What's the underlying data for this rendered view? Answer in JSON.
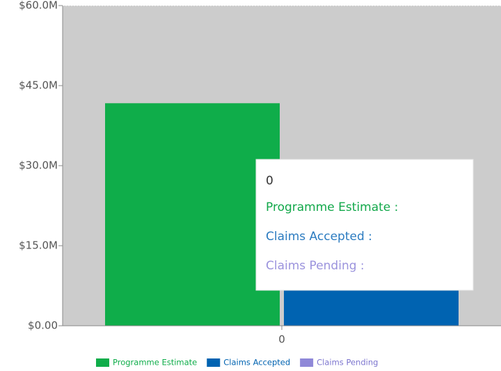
{
  "chart_data": {
    "type": "bar",
    "categories": [
      "0"
    ],
    "series": [
      {
        "name": "Programme Estimate",
        "color": "#0fad4a",
        "values": [
          41700000
        ]
      },
      {
        "name": "Claims Accepted",
        "color": "#0063b1",
        "values": [
          20000000
        ]
      },
      {
        "name": "Claims Pending",
        "color": "#8f88d8",
        "values": [
          null
        ]
      }
    ],
    "ylim": [
      0,
      60000000
    ],
    "yticks": [
      {
        "value": 0,
        "label": "$0.00"
      },
      {
        "value": 15000000,
        "label": "$15.0M"
      },
      {
        "value": 30000000,
        "label": "$30.0M"
      },
      {
        "value": 45000000,
        "label": "$45.0M"
      },
      {
        "value": 60000000,
        "label": "$60.0M"
      }
    ],
    "plot_background": "#cccccc",
    "legend": "bottom",
    "tooltip": {
      "title": "0",
      "items": [
        {
          "text": "Programme Estimate :",
          "color": "#12a84a"
        },
        {
          "text": "Claims Accepted :",
          "color": "#2b7bc0"
        },
        {
          "text": "Claims Pending :",
          "color": "#9b93dd"
        }
      ]
    }
  }
}
